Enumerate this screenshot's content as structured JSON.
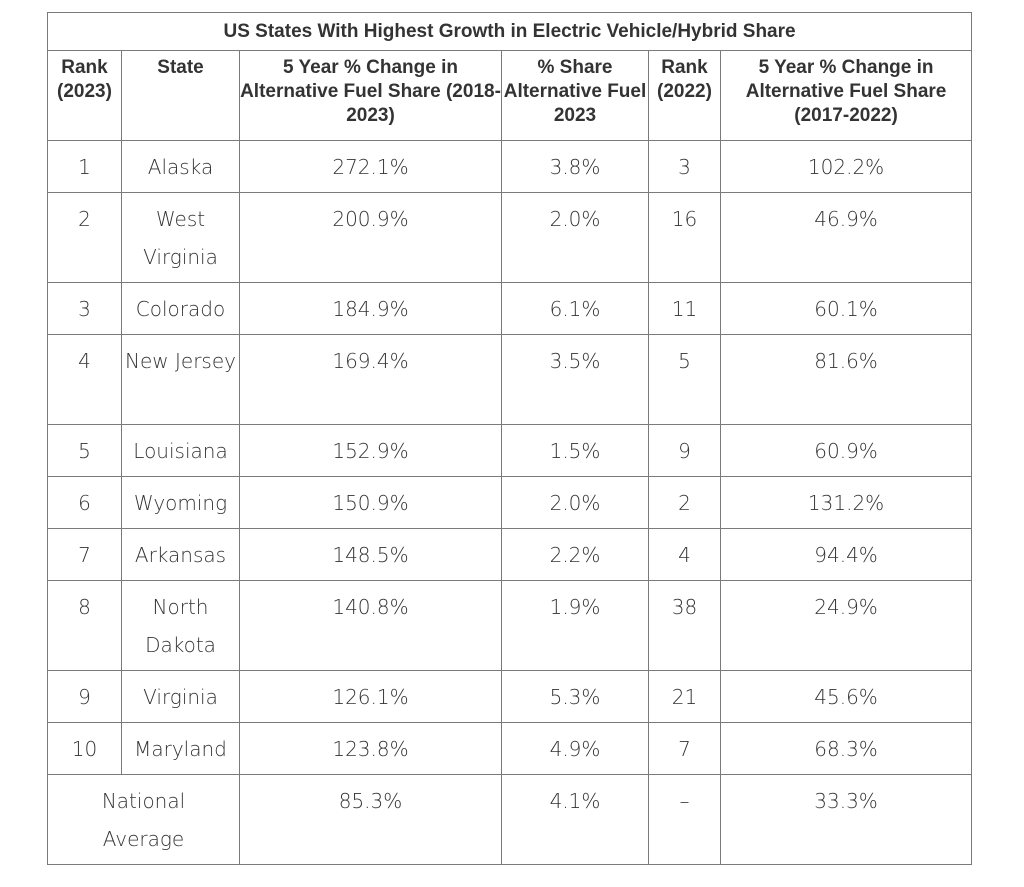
{
  "title": "US States With Highest Growth in Electric Vehicle/Hybrid Share",
  "headers": [
    "Rank (2023)",
    "State",
    "5 Year % Change in Alternative Fuel Share (2018-2023)",
    "% Share Alternative Fuel 2023",
    "Rank (2022)",
    "5 Year % Change in Alternative Fuel Share (2017-2022)"
  ],
  "rows": [
    [
      "1",
      "Alaska",
      "272.1%",
      "3.8%",
      "3",
      "102.2%"
    ],
    [
      "2",
      "West Virginia",
      "200.9%",
      "2.0%",
      "16",
      "46.9%"
    ],
    [
      "3",
      "Colorado",
      "184.9%",
      "6.1%",
      "11",
      "60.1%"
    ],
    [
      "4",
      "New Jersey",
      "169.4%",
      "3.5%",
      "5",
      "81.6%"
    ],
    [
      "5",
      "Louisiana",
      "152.9%",
      "1.5%",
      "9",
      "60.9%"
    ],
    [
      "6",
      "Wyoming",
      "150.9%",
      "2.0%",
      "2",
      "131.2%"
    ],
    [
      "7",
      "Arkansas",
      "148.5%",
      "2.2%",
      "4",
      "94.4%"
    ],
    [
      "8",
      "North Dakota",
      "140.8%",
      "1.9%",
      "38",
      "24.9%"
    ],
    [
      "9",
      "Virginia",
      "126.1%",
      "5.3%",
      "21",
      "45.6%"
    ],
    [
      "10",
      "Maryland",
      "123.8%",
      "4.9%",
      "7",
      "68.3%"
    ]
  ],
  "national": [
    "National Average",
    "85.3%",
    "4.1%",
    "–",
    "33.3%"
  ]
}
